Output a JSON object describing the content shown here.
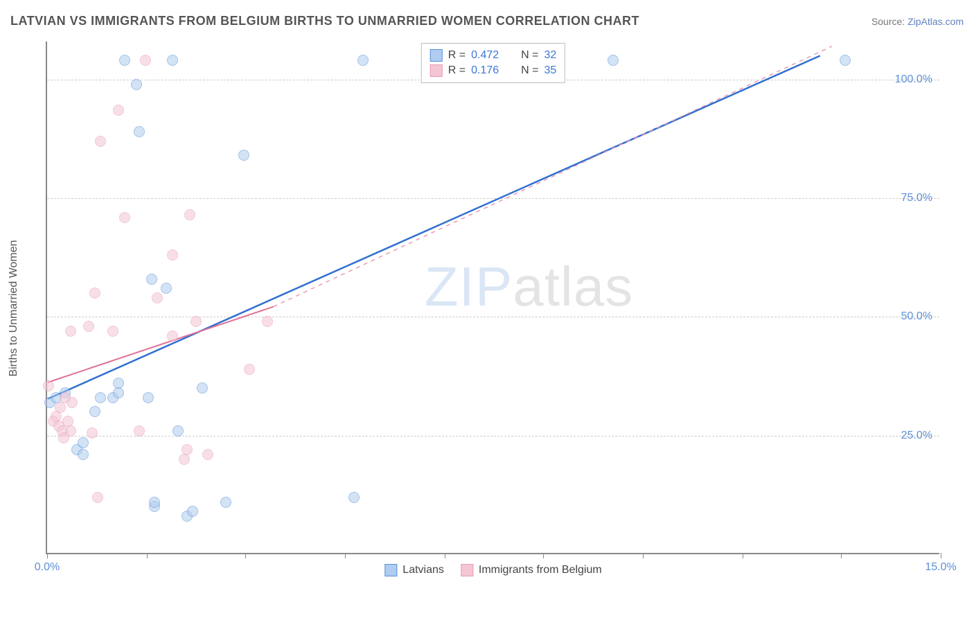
{
  "header": {
    "title": "LATVIAN VS IMMIGRANTS FROM BELGIUM BIRTHS TO UNMARRIED WOMEN CORRELATION CHART",
    "source_prefix": "Source: ",
    "source_link": "ZipAtlas.com"
  },
  "watermark": {
    "part1": "ZIP",
    "part2": "atlas"
  },
  "chart": {
    "type": "scatter",
    "y_axis_label": "Births to Unmarried Women",
    "background_color": "#ffffff",
    "grid_color": "#cccccc",
    "axis_color": "#888888",
    "xlim": [
      0,
      15
    ],
    "ylim": [
      0,
      108
    ],
    "yticks": [
      25,
      50,
      75,
      100
    ],
    "ytick_labels": [
      "25.0%",
      "50.0%",
      "75.0%",
      "100.0%"
    ],
    "xticks": [
      0,
      1.67,
      3.33,
      5.0,
      6.67,
      8.33,
      10.0,
      11.67,
      13.33,
      15.0
    ],
    "xtick_labels_shown": {
      "0": "0.0%",
      "15": "15.0%"
    },
    "marker_radius": 8,
    "marker_opacity": 0.55,
    "series": [
      {
        "name": "Latvians",
        "color_stroke": "#5b8fd6",
        "color_fill": "#aecdf0",
        "R": "0.472",
        "N": "32",
        "points": [
          [
            0.05,
            32
          ],
          [
            0.15,
            33
          ],
          [
            0.3,
            34
          ],
          [
            0.5,
            22
          ],
          [
            0.6,
            21
          ],
          [
            0.6,
            23.5
          ],
          [
            0.8,
            30
          ],
          [
            0.9,
            33
          ],
          [
            1.1,
            33
          ],
          [
            1.2,
            34
          ],
          [
            1.2,
            36
          ],
          [
            1.3,
            104
          ],
          [
            1.5,
            99
          ],
          [
            1.55,
            89
          ],
          [
            1.7,
            33
          ],
          [
            1.75,
            58
          ],
          [
            1.8,
            10
          ],
          [
            1.8,
            11
          ],
          [
            2.0,
            56
          ],
          [
            2.1,
            104
          ],
          [
            2.2,
            26
          ],
          [
            2.35,
            8
          ],
          [
            2.44,
            9
          ],
          [
            2.6,
            35
          ],
          [
            3.0,
            11
          ],
          [
            3.3,
            84
          ],
          [
            5.15,
            12
          ],
          [
            5.3,
            104
          ],
          [
            9.5,
            104
          ],
          [
            13.4,
            104
          ]
        ],
        "regression_solid": {
          "x1": 0,
          "y1": 32.5,
          "x2": 13.0,
          "y2": 105
        },
        "regression_dash_extend": null
      },
      {
        "name": "Immigrants from Belgium",
        "color_stroke": "#e89ab2",
        "color_fill": "#f4c6d4",
        "R": "0.176",
        "N": "35",
        "points": [
          [
            0.02,
            35.5
          ],
          [
            0.1,
            28
          ],
          [
            0.15,
            29
          ],
          [
            0.2,
            27
          ],
          [
            0.22,
            31
          ],
          [
            0.25,
            26
          ],
          [
            0.28,
            24.5
          ],
          [
            0.3,
            33
          ],
          [
            0.35,
            28
          ],
          [
            0.4,
            26
          ],
          [
            0.4,
            47
          ],
          [
            0.42,
            32
          ],
          [
            0.7,
            48
          ],
          [
            0.75,
            25.5
          ],
          [
            0.8,
            55
          ],
          [
            0.85,
            12
          ],
          [
            0.9,
            87
          ],
          [
            1.1,
            47
          ],
          [
            1.2,
            93.5
          ],
          [
            1.3,
            71
          ],
          [
            1.55,
            26
          ],
          [
            1.65,
            104
          ],
          [
            1.85,
            54
          ],
          [
            2.1,
            46
          ],
          [
            2.1,
            63
          ],
          [
            2.3,
            20
          ],
          [
            2.35,
            22
          ],
          [
            2.4,
            71.5
          ],
          [
            2.5,
            49
          ],
          [
            2.7,
            21
          ],
          [
            3.4,
            39
          ],
          [
            3.7,
            49
          ]
        ],
        "regression_solid": {
          "x1": 0,
          "y1": 36,
          "x2": 3.8,
          "y2": 52
        },
        "regression_dash_extend": {
          "x1": 3.8,
          "y1": 52,
          "x2": 13.2,
          "y2": 107
        }
      }
    ],
    "legend_top_labels": {
      "R": "R =",
      "N": "N ="
    },
    "legend_bottom": [
      "Latvians",
      "Immigrants from Belgium"
    ]
  }
}
